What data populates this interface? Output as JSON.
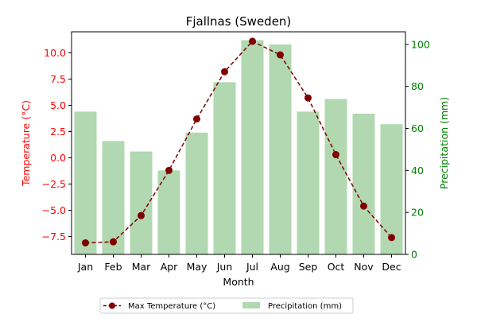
{
  "chart_data": {
    "type": "bar+line",
    "title": "Fjallnas (Sweden)",
    "xlabel": "Month",
    "categories": [
      "Jan",
      "Feb",
      "Mar",
      "Apr",
      "May",
      "Jun",
      "Jul",
      "Aug",
      "Sep",
      "Oct",
      "Nov",
      "Dec"
    ],
    "temperature": {
      "name": "Max Temperature (°C)",
      "axis_label": "Temperature (°C)",
      "color": "#800000",
      "axis_color": "#ff0000",
      "values": [
        -8.1,
        -8.0,
        -5.5,
        -1.2,
        3.7,
        8.2,
        11.1,
        9.8,
        5.7,
        0.3,
        -4.6,
        -7.6
      ],
      "ylim": [
        -9.2,
        12.0
      ],
      "ticks": [
        -7.5,
        -5.0,
        -2.5,
        0.0,
        2.5,
        5.0,
        7.5,
        10.0
      ],
      "tick_labels": [
        "−7.5",
        "−5.0",
        "−2.5",
        "0.0",
        "2.5",
        "5.0",
        "7.5",
        "10.0"
      ]
    },
    "precipitation": {
      "name": "Precipitation (mm)",
      "axis_label": "Precipitation (mm)",
      "color": "#b1d8b1",
      "axis_color": "#008000",
      "values": [
        68,
        54,
        49,
        40,
        58,
        82,
        102,
        100,
        68,
        74,
        67,
        62
      ],
      "ylim": [
        0,
        106
      ],
      "ticks": [
        0,
        20,
        40,
        60,
        80,
        100
      ],
      "tick_labels": [
        "0",
        "20",
        "40",
        "60",
        "80",
        "100"
      ]
    },
    "legend": {
      "placement": "bottom-center",
      "columns": 2
    }
  }
}
